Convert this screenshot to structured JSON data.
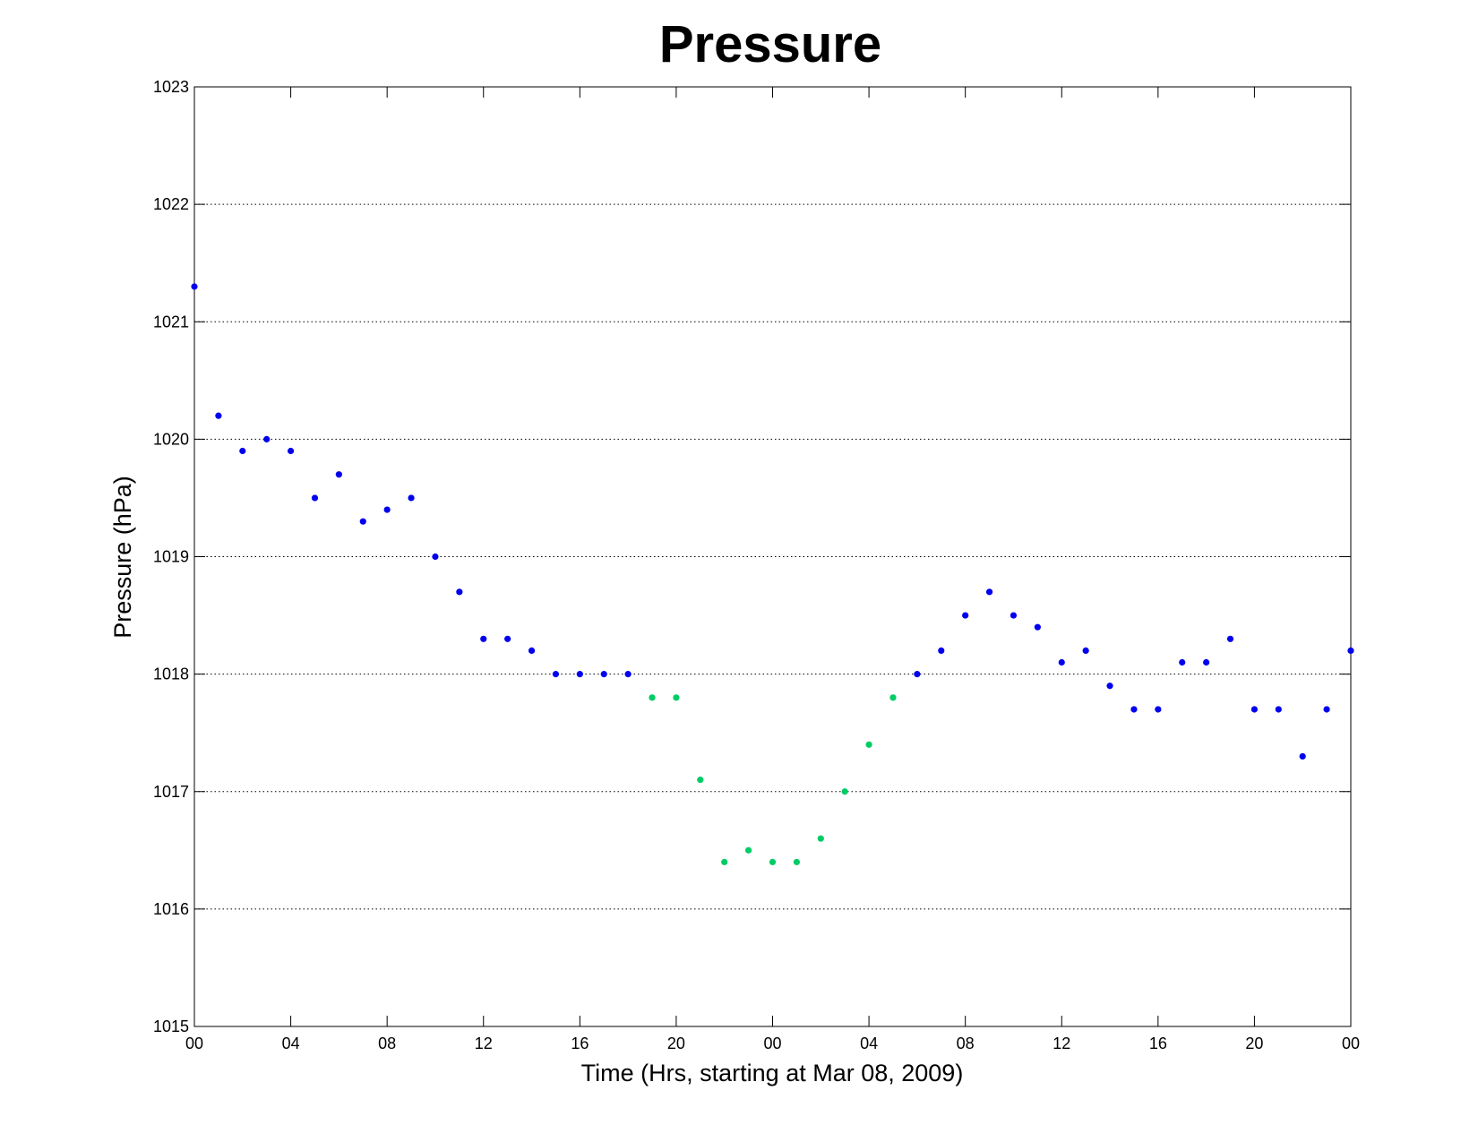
{
  "chart_data": {
    "type": "scatter",
    "title": "Pressure",
    "xlabel": "Time (Hrs, starting at Mar 08, 2009)",
    "ylabel": "Pressure (hPa)",
    "xlim": [
      0,
      48
    ],
    "ylim": [
      1015,
      1023
    ],
    "grid": "horizontal dotted",
    "x_ticks": [
      0,
      4,
      8,
      12,
      16,
      20,
      24,
      28,
      32,
      36,
      40,
      44,
      48
    ],
    "x_tick_labels": [
      "00",
      "04",
      "08",
      "12",
      "16",
      "20",
      "00",
      "04",
      "08",
      "12",
      "16",
      "20",
      "00"
    ],
    "y_ticks": [
      1015,
      1016,
      1017,
      1018,
      1019,
      1020,
      1021,
      1022,
      1023
    ],
    "y_tick_labels": [
      "1015",
      "1016",
      "1017",
      "1018",
      "1019",
      "1020",
      "1021",
      "1022",
      "1023"
    ],
    "colors": {
      "primary": "#0000ee",
      "highlight": "#00cc66"
    },
    "series": [
      {
        "color": "primary",
        "points": [
          [
            0,
            1021.3
          ],
          [
            1,
            1020.2
          ],
          [
            2,
            1019.9
          ],
          [
            3,
            1020.0
          ],
          [
            4,
            1019.9
          ],
          [
            5,
            1019.5
          ],
          [
            6,
            1019.7
          ],
          [
            7,
            1019.3
          ],
          [
            8,
            1019.4
          ],
          [
            9,
            1019.5
          ],
          [
            10,
            1019.0
          ],
          [
            11,
            1018.7
          ],
          [
            12,
            1018.3
          ],
          [
            13,
            1018.3
          ],
          [
            14,
            1018.2
          ],
          [
            15,
            1018.0
          ],
          [
            16,
            1018.0
          ],
          [
            17,
            1018.0
          ],
          [
            18,
            1018.0
          ],
          [
            30,
            1018.0
          ],
          [
            31,
            1018.2
          ],
          [
            32,
            1018.5
          ],
          [
            33,
            1018.7
          ],
          [
            34,
            1018.5
          ],
          [
            35,
            1018.4
          ],
          [
            36,
            1018.1
          ],
          [
            37,
            1018.2
          ],
          [
            38,
            1017.9
          ],
          [
            39,
            1017.7
          ],
          [
            40,
            1017.7
          ],
          [
            41,
            1018.1
          ],
          [
            42,
            1018.1
          ],
          [
            43,
            1018.3
          ],
          [
            44,
            1017.7
          ],
          [
            45,
            1017.7
          ],
          [
            46,
            1017.3
          ],
          [
            47,
            1017.7
          ],
          [
            48,
            1018.2
          ]
        ]
      },
      {
        "color": "highlight",
        "points": [
          [
            19,
            1017.8
          ],
          [
            20,
            1017.8
          ],
          [
            21,
            1017.1
          ],
          [
            22,
            1016.4
          ],
          [
            23,
            1016.5
          ],
          [
            24,
            1016.4
          ],
          [
            25,
            1016.4
          ],
          [
            26,
            1016.6
          ],
          [
            27,
            1017.0
          ],
          [
            28,
            1017.4
          ],
          [
            29,
            1017.8
          ]
        ]
      }
    ]
  }
}
